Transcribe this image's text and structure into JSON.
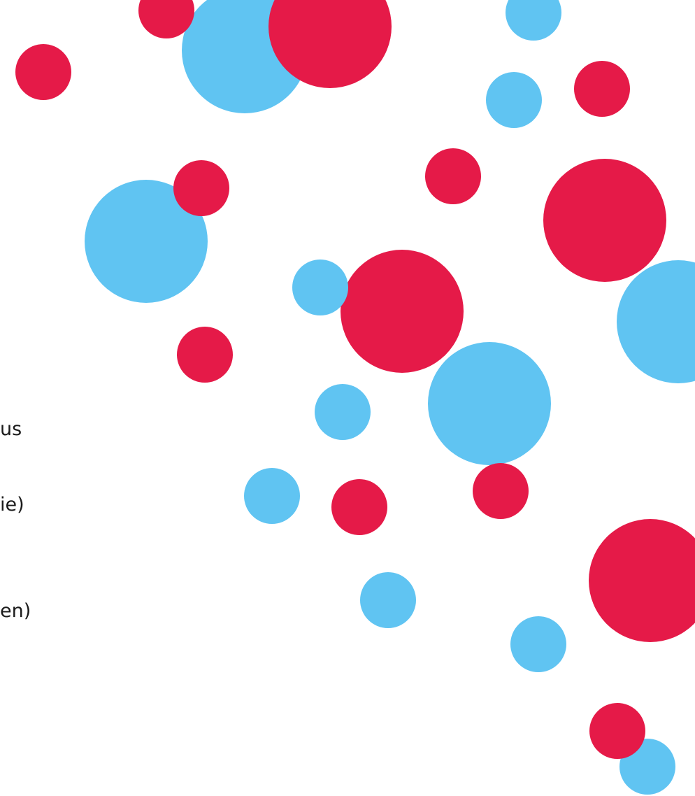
{
  "text_fragments": [
    "us",
    "ie)",
    "en)"
  ],
  "colors": {
    "red": "#e51a48",
    "blue": "#60c4f2",
    "text": "#1b1b1b",
    "background": "#ffffff"
  }
}
